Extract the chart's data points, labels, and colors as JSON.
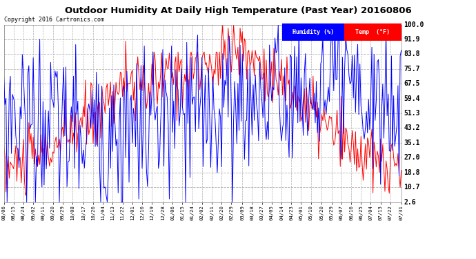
{
  "title": "Outdoor Humidity At Daily High Temperature (Past Year) 20160806",
  "copyright": "Copyright 2016 Cartronics.com",
  "ylabel_right_values": [
    100.0,
    91.9,
    83.8,
    75.7,
    67.5,
    59.4,
    51.3,
    43.2,
    35.1,
    27.0,
    18.8,
    10.7,
    2.6
  ],
  "ymin": 2.6,
  "ymax": 100.0,
  "bg_color": "#ffffff",
  "plot_bg_color": "#ffffff",
  "grid_color": "#b0b0b0",
  "humidity_color": "#0000ff",
  "temp_color": "#ff0000",
  "legend_humidity_label": "Humidity (%)",
  "legend_temp_label": "Temp  (°F)",
  "xtick_labels": [
    "08/06",
    "08/15",
    "08/24",
    "09/02",
    "09/11",
    "09/20",
    "09/29",
    "10/08",
    "10/17",
    "10/26",
    "11/04",
    "11/13",
    "11/22",
    "12/01",
    "12/10",
    "12/19",
    "12/28",
    "01/06",
    "01/15",
    "01/24",
    "02/02",
    "02/11",
    "02/20",
    "02/29",
    "03/09",
    "03/18",
    "03/27",
    "04/05",
    "04/14",
    "04/23",
    "05/01",
    "05/10",
    "05/20",
    "05/29",
    "06/07",
    "06/16",
    "06/25",
    "07/04",
    "07/13",
    "07/22",
    "07/31"
  ],
  "n_days": 366,
  "n_ticks": 41,
  "temp_seed": 10,
  "hum_seed": 20
}
